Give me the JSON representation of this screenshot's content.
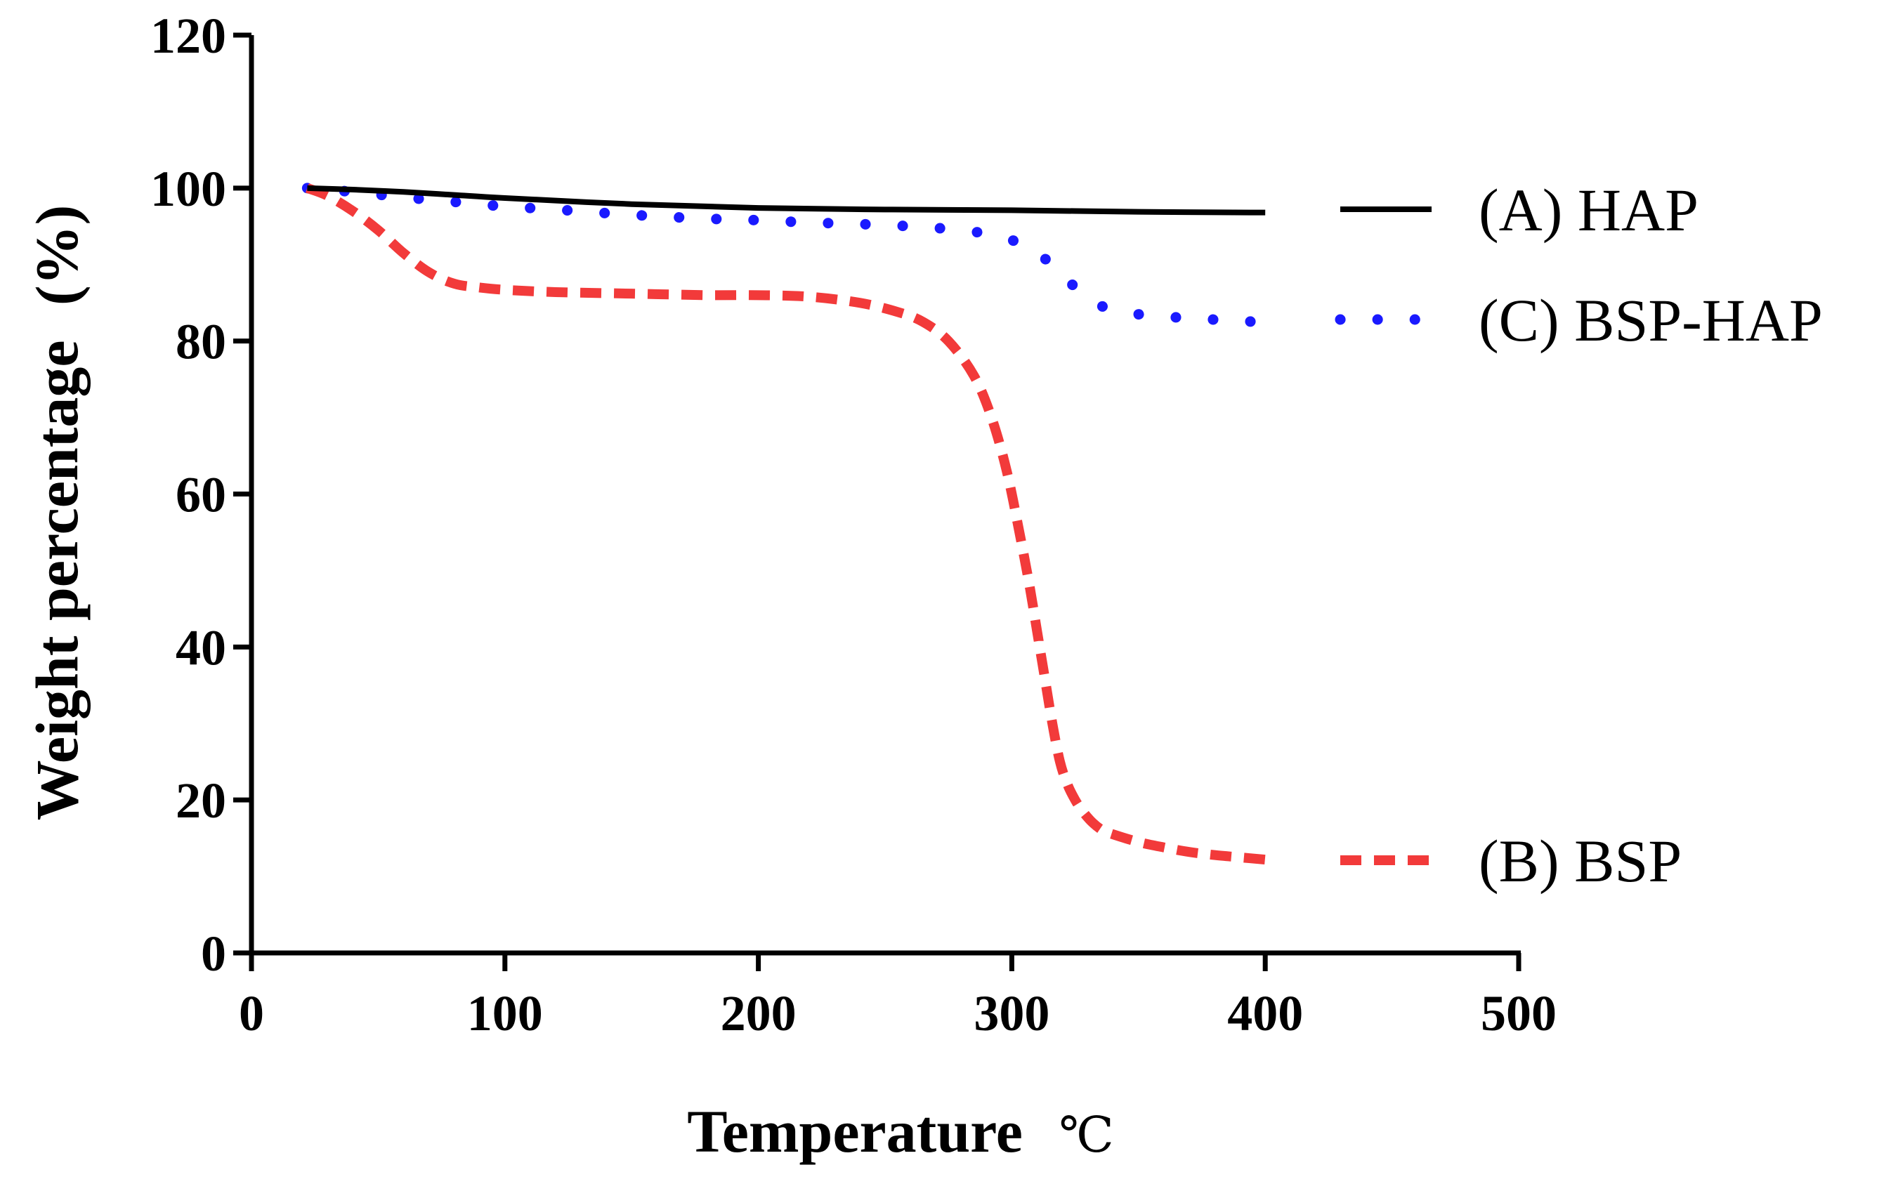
{
  "chart_data": {
    "type": "line",
    "title": "",
    "xlabel": "Temperature",
    "xlabel_unit": "℃",
    "ylabel": "Weight percentage",
    "ylabel_unit": "(%)",
    "xlim": [
      0,
      500
    ],
    "ylim": [
      0,
      120
    ],
    "xticks": [
      0,
      100,
      200,
      300,
      400,
      500
    ],
    "yticks": [
      0,
      20,
      40,
      60,
      80,
      100,
      120
    ],
    "grid": false,
    "legend_position": "right",
    "series": [
      {
        "name": "(A) HAP",
        "color": "#000000",
        "style": "solid",
        "x": [
          22,
          40,
          60,
          80,
          100,
          150,
          200,
          250,
          300,
          350,
          400
        ],
        "y": [
          100,
          99.8,
          99.5,
          99.1,
          98.7,
          97.9,
          97.4,
          97.2,
          97.1,
          96.9,
          96.8
        ]
      },
      {
        "name": "(B) BSP",
        "color": "#f23a3a",
        "style": "dashed",
        "x": [
          22,
          30,
          40,
          50,
          60,
          70,
          80,
          90,
          100,
          120,
          150,
          180,
          200,
          220,
          240,
          255,
          265,
          275,
          285,
          292,
          298,
          303,
          307,
          310,
          313,
          316,
          319,
          322,
          325,
          328,
          332,
          336,
          340,
          350,
          360,
          370,
          380,
          390,
          400
        ],
        "y": [
          100,
          99,
          97,
          94.5,
          91.5,
          89,
          87.5,
          87,
          86.7,
          86.4,
          86.2,
          86,
          86,
          85.8,
          85,
          83.8,
          82.5,
          80,
          75.5,
          70,
          63,
          55,
          48,
          42,
          36,
          30,
          25,
          22,
          20,
          18.5,
          17,
          16,
          15.5,
          14.5,
          13.8,
          13.2,
          12.8,
          12.5,
          12.2
        ]
      },
      {
        "name": "(C) BSP-HAP",
        "color": "#1a1aff",
        "style": "dotted",
        "x": [
          22,
          40,
          60,
          80,
          100,
          120,
          150,
          180,
          200,
          220,
          240,
          260,
          280,
          295,
          305,
          312,
          318,
          325,
          332,
          340,
          350,
          360,
          370,
          380,
          390,
          400
        ],
        "y": [
          100,
          99.5,
          98.8,
          98.2,
          97.6,
          97.2,
          96.5,
          96,
          95.8,
          95.5,
          95.3,
          95,
          94.5,
          93.7,
          92.5,
          91,
          89.5,
          87,
          85.2,
          84,
          83.5,
          83.2,
          83,
          82.8,
          82.6,
          82.5
        ]
      }
    ]
  }
}
